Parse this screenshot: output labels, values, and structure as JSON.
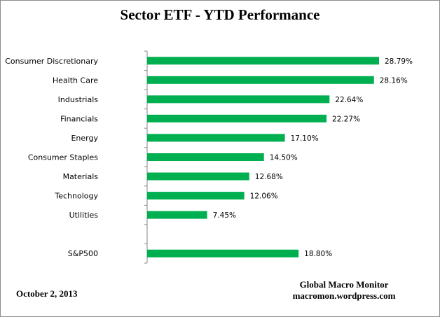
{
  "chart_data": {
    "type": "bar",
    "orientation": "horizontal",
    "title": "Sector ETF - YTD  Performance",
    "categories": [
      "Consumer Discretionary",
      "Health Care",
      "Industrials",
      "Financials",
      "Energy",
      "Consumer Staples",
      "Materials",
      "Technology",
      "Utilities",
      "",
      "S&P500"
    ],
    "values": [
      28.79,
      28.16,
      22.64,
      22.27,
      17.1,
      14.5,
      12.68,
      12.06,
      7.45,
      null,
      18.8
    ],
    "data_labels": [
      "28.79%",
      "28.16%",
      "22.64%",
      "22.27%",
      "17.10%",
      "14.50%",
      "12.68%",
      "12.06%",
      "7.45%",
      "",
      "18.80%"
    ],
    "xlabel": "",
    "ylabel": "",
    "xlim": [
      0,
      30
    ],
    "grid": false,
    "legend": "none",
    "bar_color": "#00b050"
  },
  "footer": {
    "date": "October 2, 2013",
    "source_name": "Global Macro Monitor",
    "source_url": "macromon.wordpress.com"
  }
}
